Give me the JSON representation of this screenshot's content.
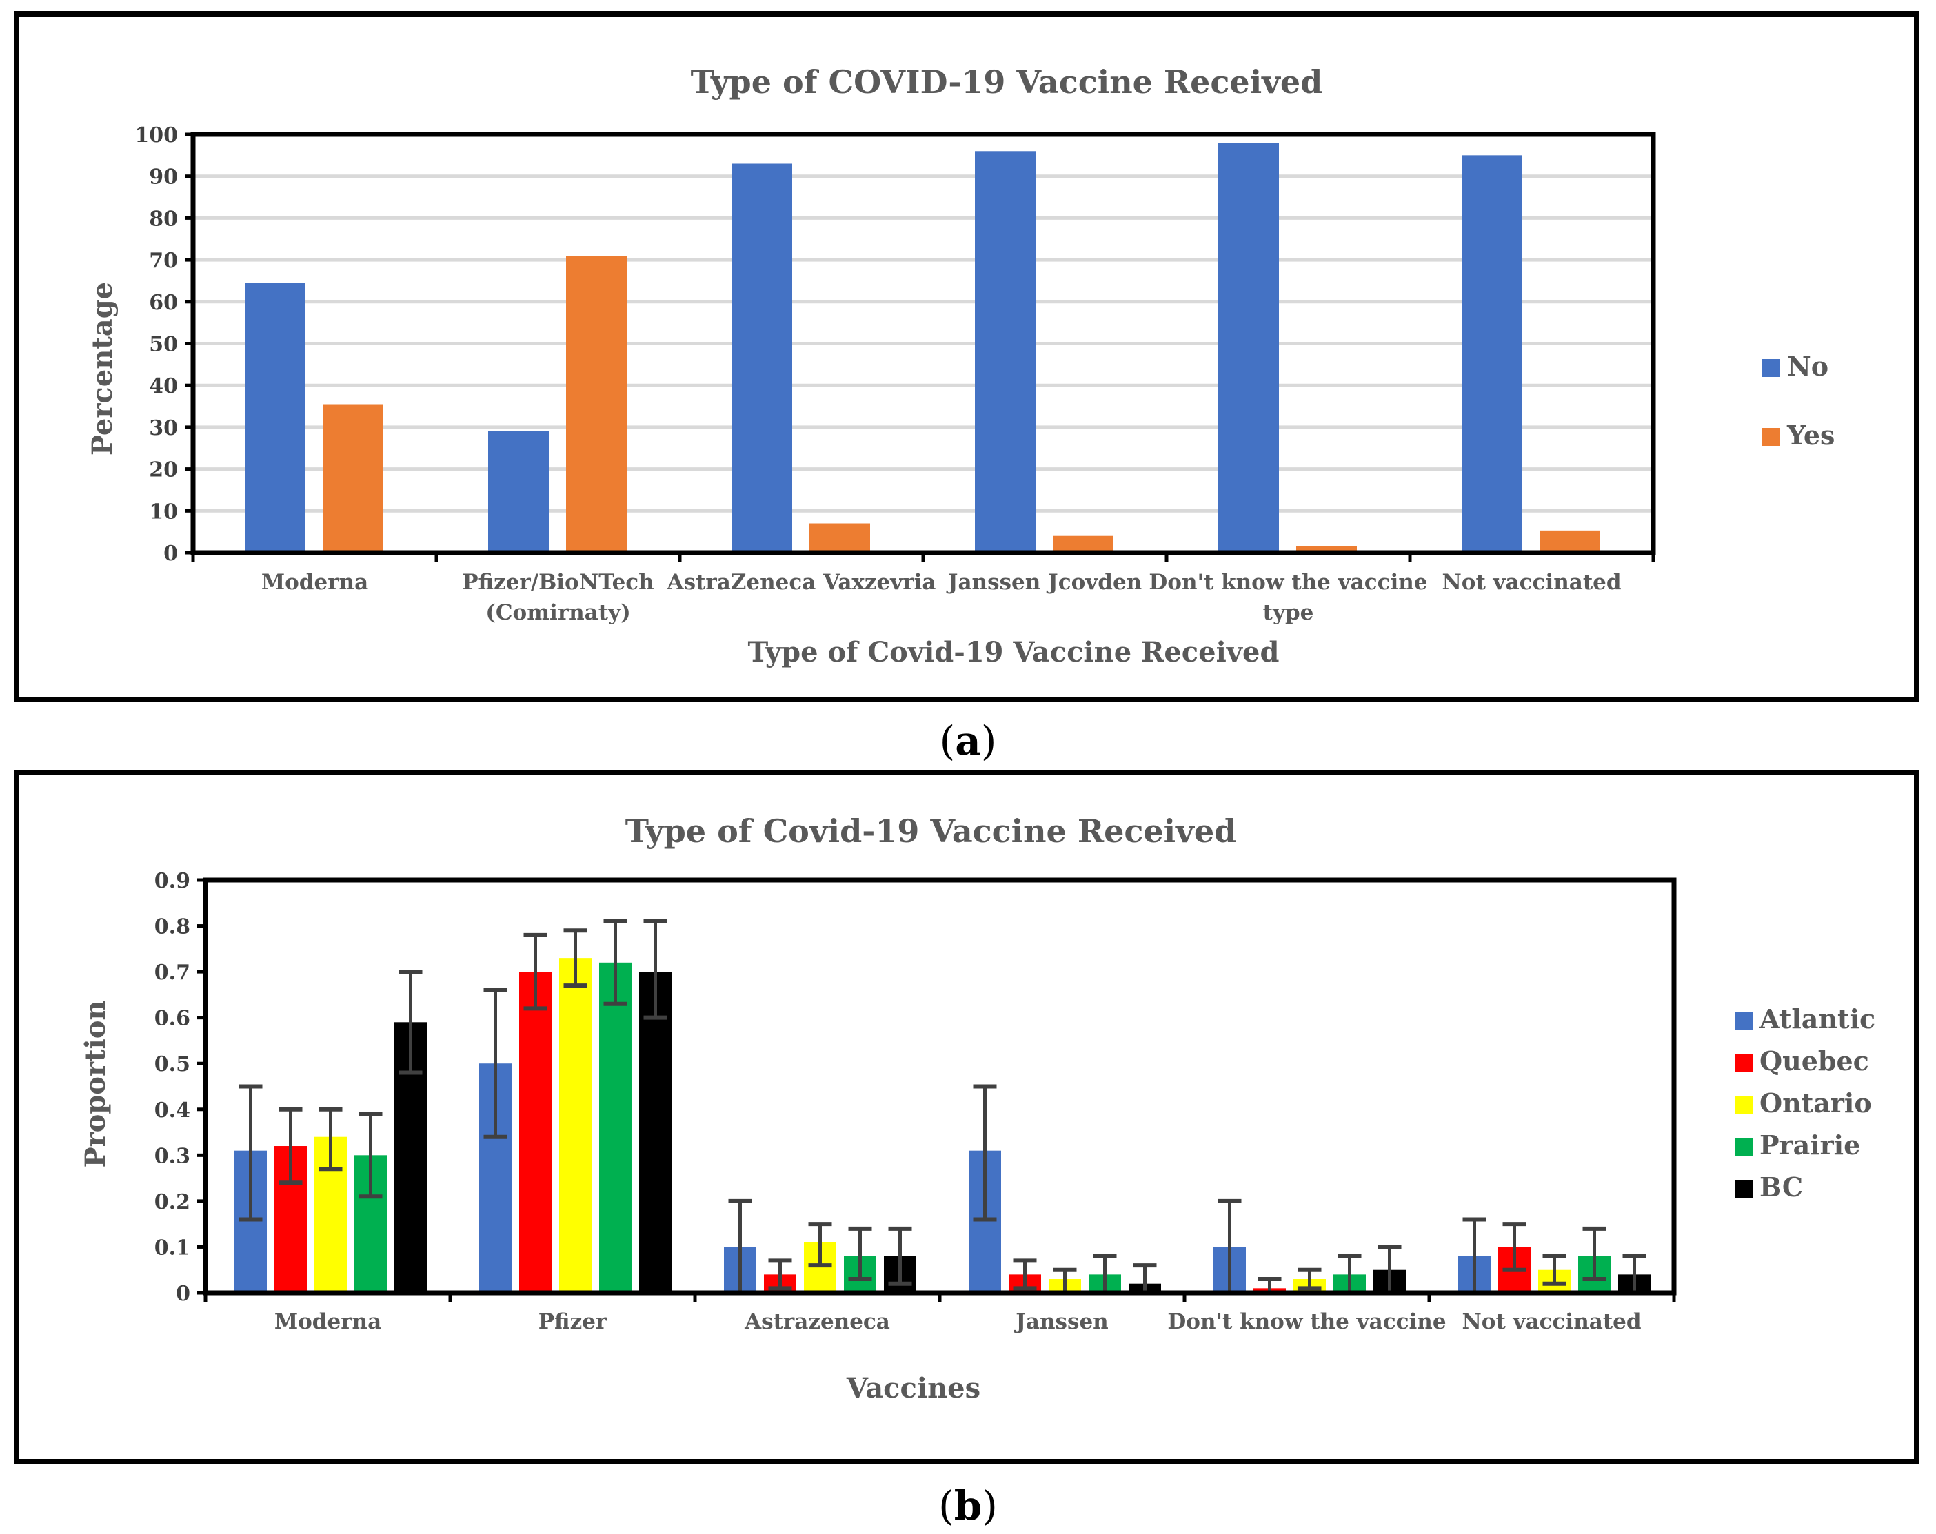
{
  "chart_data": [
    {
      "type": "bar",
      "caption": "a",
      "title": "Type of COVID-19 Vaccine Received",
      "xlabel": "Type of Covid-19 Vaccine Received",
      "ylabel": "Percentage",
      "ylim": [
        0,
        100
      ],
      "yticks": [
        "0",
        "10",
        "20",
        "30",
        "40",
        "50",
        "60",
        "70",
        "80",
        "90",
        "100"
      ],
      "categories": [
        [
          "Moderna"
        ],
        [
          "Pfizer/BioNTech",
          "(Comirnaty)"
        ],
        [
          "AstraZeneca Vaxzevria"
        ],
        [
          "Janssen Jcovden"
        ],
        [
          "Don't know the vaccine",
          "type"
        ],
        [
          "Not vaccinated"
        ]
      ],
      "grid": true,
      "legend_position": "right",
      "series": [
        {
          "name": "No",
          "color": "#4472C4",
          "values": [
            64.5,
            29,
            93,
            96,
            98,
            95
          ]
        },
        {
          "name": "Yes",
          "color": "#ED7D31",
          "values": [
            35.5,
            71,
            7,
            4,
            1.5,
            5.3
          ]
        }
      ]
    },
    {
      "type": "bar",
      "caption": "b",
      "title": "Type of Covid-19 Vaccine Received",
      "xlabel": "Vaccines",
      "ylabel": "Proportion",
      "ylim": [
        0,
        0.9
      ],
      "yticks": [
        "0",
        "0.1",
        "0.2",
        "0.3",
        "0.4",
        "0.5",
        "0.6",
        "0.7",
        "0.8",
        "0.9"
      ],
      "categories": [
        [
          "Moderna"
        ],
        [
          "Pfizer"
        ],
        [
          "Astrazeneca"
        ],
        [
          "Janssen"
        ],
        [
          "Don't know the vaccine"
        ],
        [
          "Not vaccinated"
        ]
      ],
      "grid": false,
      "legend_position": "right",
      "error_bars": true,
      "series": [
        {
          "name": "Atlantic",
          "color": "#4472C4",
          "values": [
            0.31,
            0.5,
            0.1,
            0.31,
            0.1,
            0.08
          ],
          "err": [
            [
              0.16,
              0.45
            ],
            [
              0.34,
              0.66
            ],
            [
              0.0,
              0.2
            ],
            [
              0.16,
              0.45
            ],
            [
              0.0,
              0.2
            ],
            [
              0.0,
              0.16
            ]
          ]
        },
        {
          "name": "Quebec",
          "color": "#FF0000",
          "values": [
            0.32,
            0.7,
            0.04,
            0.04,
            0.01,
            0.1
          ],
          "err": [
            [
              0.24,
              0.4
            ],
            [
              0.62,
              0.78
            ],
            [
              0.01,
              0.07
            ],
            [
              0.01,
              0.07
            ],
            [
              0.0,
              0.03
            ],
            [
              0.05,
              0.15
            ]
          ]
        },
        {
          "name": "Ontario",
          "color": "#FFFF00",
          "values": [
            0.34,
            0.73,
            0.11,
            0.03,
            0.03,
            0.05
          ],
          "err": [
            [
              0.27,
              0.4
            ],
            [
              0.67,
              0.79
            ],
            [
              0.06,
              0.15
            ],
            [
              0.0,
              0.05
            ],
            [
              0.01,
              0.05
            ],
            [
              0.02,
              0.08
            ]
          ]
        },
        {
          "name": "Prairie",
          "color": "#00B050",
          "values": [
            0.3,
            0.72,
            0.08,
            0.04,
            0.04,
            0.08
          ],
          "err": [
            [
              0.21,
              0.39
            ],
            [
              0.63,
              0.81
            ],
            [
              0.03,
              0.14
            ],
            [
              0.0,
              0.08
            ],
            [
              0.0,
              0.08
            ],
            [
              0.03,
              0.14
            ]
          ]
        },
        {
          "name": "BC",
          "color": "#000000",
          "values": [
            0.59,
            0.7,
            0.08,
            0.02,
            0.05,
            0.04
          ],
          "err": [
            [
              0.48,
              0.7
            ],
            [
              0.6,
              0.81
            ],
            [
              0.02,
              0.14
            ],
            [
              0.0,
              0.06
            ],
            [
              0.0,
              0.1
            ],
            [
              0.0,
              0.08
            ]
          ]
        }
      ]
    }
  ]
}
